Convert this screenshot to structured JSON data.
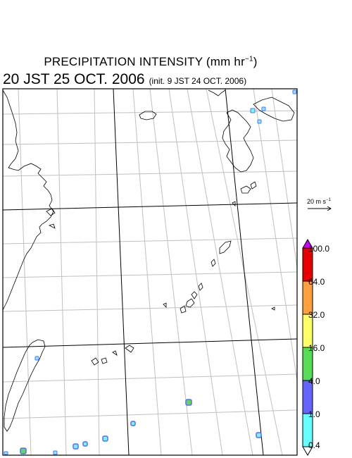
{
  "header": {
    "title": "PRECIPITATION INTENSITY (mm hr",
    "title_exponent": "−1",
    "title_close": ")",
    "valid_time": "20 JST 25 OCT. 2006",
    "init_time": "(init. 9 JST 24 OCT. 2006)"
  },
  "wind_vector": {
    "label": "20 m s",
    "label_exponent": "−1"
  },
  "colorbar": {
    "labels": [
      "100.0",
      "64.0",
      "32.0",
      "16.0",
      "4.0",
      "1.0",
      "0.4"
    ],
    "colors": [
      "#e60000",
      "#ffa040",
      "#ffff66",
      "#55dd55",
      "#6464ff",
      "#66ffff"
    ],
    "over_color": "#c800ff",
    "under_color": "#ffffff"
  },
  "colors": {
    "frame": "#000000",
    "grid": "#c0c0c0",
    "coast": "#000000"
  }
}
